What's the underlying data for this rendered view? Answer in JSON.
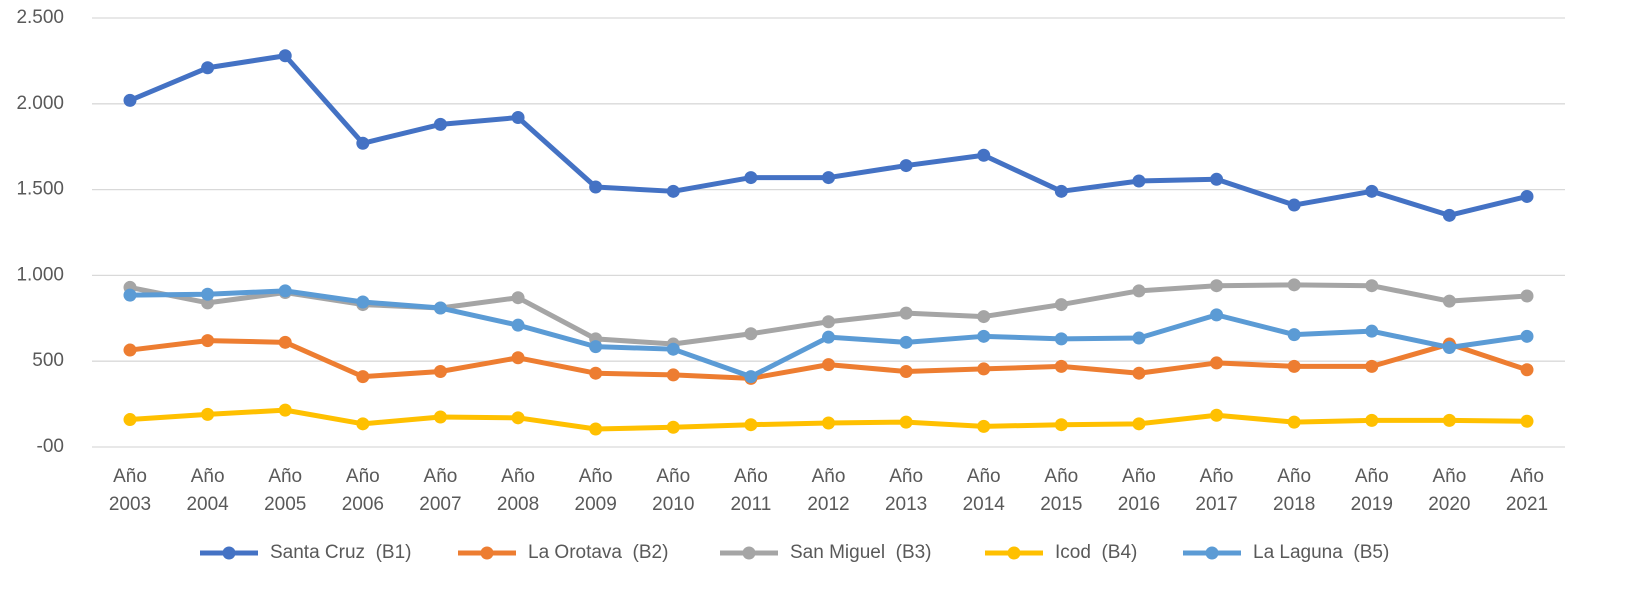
{
  "chart_data": {
    "type": "line",
    "categories": [
      "Año 2003",
      "Año 2004",
      "Año 2005",
      "Año 2006",
      "Año 2007",
      "Año 2008",
      "Año 2009",
      "Año 2010",
      "Año 2011",
      "Año 2012",
      "Año 2013",
      "Año 2014",
      "Año 2015",
      "Año 2016",
      "Año 2017",
      "Año 2018",
      "Año 2019",
      "Año 2020",
      "Año 2021"
    ],
    "ylim": [
      0,
      2500
    ],
    "yticks": [
      {
        "value": 0,
        "label": "-00"
      },
      500,
      {
        "value": 1000,
        "label": "1.000"
      },
      {
        "value": 1500,
        "label": "1.500"
      },
      {
        "value": 2000,
        "label": "2.000"
      },
      {
        "value": 2500,
        "label": "2.500"
      }
    ],
    "grid": true,
    "legend": "bottom",
    "series": [
      {
        "name": "Santa Cruz  (B1)",
        "color": "#4472c4",
        "values": [
          2020,
          2210,
          2280,
          1770,
          1880,
          1920,
          1515,
          1490,
          1570,
          1570,
          1640,
          1700,
          1490,
          1550,
          1560,
          1410,
          1490,
          1350,
          1460
        ]
      },
      {
        "name": "La Orotava  (B2)",
        "color": "#ed7d31",
        "values": [
          565,
          620,
          610,
          410,
          440,
          520,
          430,
          420,
          400,
          480,
          440,
          455,
          470,
          430,
          490,
          470,
          470,
          600,
          450
        ]
      },
      {
        "name": "San Miguel  (B3)",
        "color": "#a5a5a5",
        "values": [
          930,
          840,
          900,
          830,
          810,
          870,
          630,
          600,
          660,
          730,
          780,
          760,
          830,
          910,
          940,
          945,
          940,
          850,
          880
        ]
      },
      {
        "name": "Icod  (B4)",
        "color": "#ffc000",
        "values": [
          160,
          190,
          215,
          135,
          175,
          170,
          105,
          115,
          130,
          140,
          145,
          120,
          130,
          135,
          185,
          145,
          155,
          155,
          150
        ]
      },
      {
        "name": "La Laguna  (B5)",
        "color": "#5b9bd5",
        "values": [
          885,
          890,
          910,
          845,
          810,
          710,
          585,
          570,
          410,
          640,
          610,
          645,
          630,
          635,
          770,
          655,
          675,
          580,
          645
        ]
      }
    ]
  }
}
